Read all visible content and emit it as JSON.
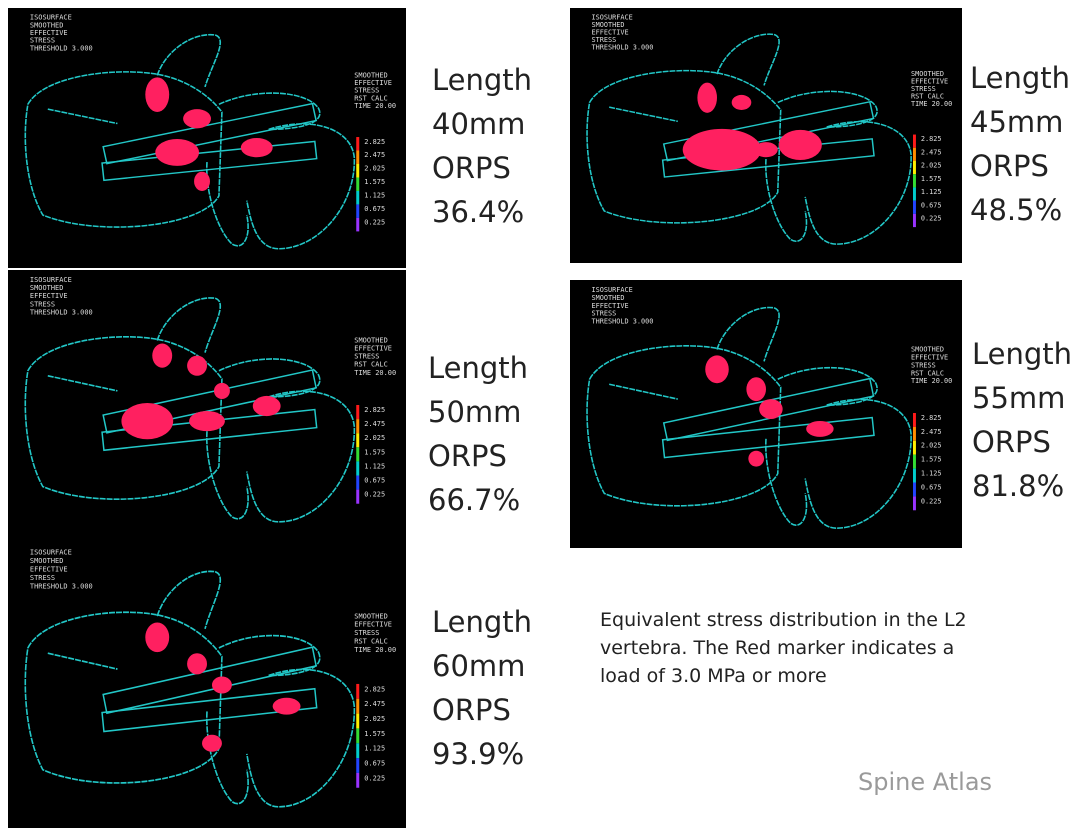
{
  "panels": [
    {
      "header": [
        "ISOSURFACE",
        "SMOOTHED",
        "EFFECTIVE",
        "STRESS",
        "THRESHOLD 3.000"
      ],
      "legend_title": [
        "SMOOTHED",
        "EFFECTIVE",
        "STRESS",
        "RST CALC",
        "TIME 20.00"
      ],
      "legend_values": [
        "2.825",
        "2.475",
        "2.025",
        "1.575",
        "1.125",
        "0.675",
        "0.225"
      ],
      "label": [
        "Length",
        "40mm",
        "ORPS",
        "36.4%"
      ]
    },
    {
      "header": [
        "ISOSURFACE",
        "SMOOTHED",
        "EFFECTIVE",
        "STRESS",
        "THRESHOLD 3.000"
      ],
      "legend_title": [
        "SMOOTHED",
        "EFFECTIVE",
        "STRESS",
        "RST CALC",
        "TIME 20.00"
      ],
      "legend_values": [
        "2.825",
        "2.475",
        "2.025",
        "1.575",
        "1.125",
        "0.675",
        "0.225"
      ],
      "label": [
        "Length",
        "45mm",
        "ORPS",
        "48.5%"
      ]
    },
    {
      "header": [
        "ISOSURFACE",
        "SMOOTHED",
        "EFFECTIVE",
        "STRESS",
        "THRESHOLD 3.000"
      ],
      "legend_title": [
        "SMOOTHED",
        "EFFECTIVE",
        "STRESS",
        "RST CALC",
        "TIME 20.00"
      ],
      "legend_values": [
        "2.825",
        "2.475",
        "2.025",
        "1.575",
        "1.125",
        "0.675",
        "0.225"
      ],
      "label": [
        "Length",
        "50mm",
        "ORPS",
        "66.7%"
      ]
    },
    {
      "header": [
        "ISOSURFACE",
        "SMOOTHED",
        "EFFECTIVE",
        "STRESS",
        "THRESHOLD 3.000"
      ],
      "legend_title": [
        "SMOOTHED",
        "EFFECTIVE",
        "STRESS",
        "RST CALC",
        "TIME 20.00"
      ],
      "legend_values": [
        "2.825",
        "2.475",
        "2.025",
        "1.575",
        "1.125",
        "0.675",
        "0.225"
      ],
      "label": [
        "Length",
        "55mm",
        "ORPS",
        "81.8%"
      ]
    },
    {
      "header": [
        "ISOSURFACE",
        "SMOOTHED",
        "EFFECTIVE",
        "STRESS",
        "THRESHOLD 3.000"
      ],
      "legend_title": [
        "SMOOTHED",
        "EFFECTIVE",
        "STRESS",
        "RST CALC",
        "TIME 20.00"
      ],
      "legend_values": [
        "2.825",
        "2.475",
        "2.025",
        "1.575",
        "1.125",
        "0.675",
        "0.225"
      ],
      "label": [
        "Length",
        "60mm",
        "ORPS",
        "93.9%"
      ]
    }
  ],
  "caption": [
    "Equivalent stress distribution in the L2",
    "vertebra. The Red marker indicates a",
    "load of 3.0 MPa or more"
  ],
  "watermark": "Spine Atlas"
}
